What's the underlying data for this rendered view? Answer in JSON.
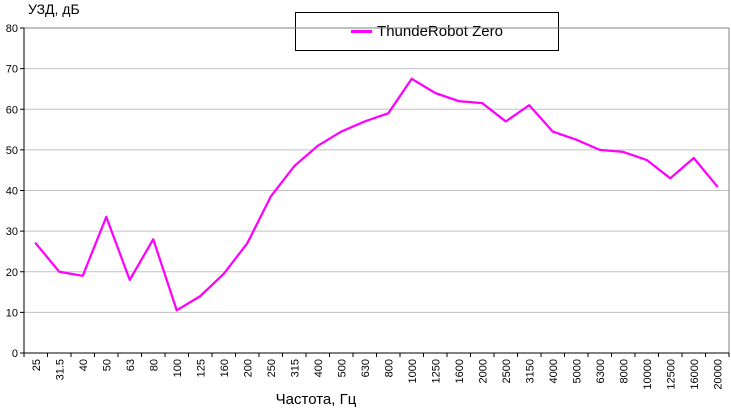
{
  "chart": {
    "y_axis_title": "УЗД, дБ",
    "x_axis_title": "Частота, Гц",
    "legend_label": "ThundeRobot Zero"
  },
  "chart_data": {
    "type": "line",
    "title": "",
    "xlabel": "Частота, Гц",
    "ylabel": "УЗД, дБ",
    "categories": [
      "25",
      "31.5",
      "40",
      "50",
      "63",
      "80",
      "100",
      "125",
      "160",
      "200",
      "250",
      "315",
      "400",
      "500",
      "630",
      "800",
      "1000",
      "1250",
      "1600",
      "2000",
      "2500",
      "3150",
      "4000",
      "5000",
      "6300",
      "8000",
      "10000",
      "12500",
      "16000",
      "20000"
    ],
    "series": [
      {
        "name": "ThundeRobot Zero",
        "color": "#FF00FF",
        "values": [
          27,
          20,
          19,
          33.5,
          18,
          28,
          10.5,
          14,
          19.5,
          27,
          38.5,
          46,
          51,
          54.5,
          57,
          59,
          67.5,
          64,
          62,
          61.5,
          57,
          61,
          54.5,
          52.5,
          50,
          49.5,
          47.5,
          43,
          48,
          41
        ]
      }
    ],
    "ylim": [
      0,
      80
    ],
    "yticks": [
      0,
      10,
      20,
      30,
      40,
      50,
      60,
      70,
      80
    ],
    "grid": "horizontal",
    "legend_position": "top-center",
    "colors": {
      "line": "#FF00FF",
      "grid": "#C0C0C0",
      "plot_border": "#808080",
      "axis": "#000000",
      "background": "#FFFFFF",
      "text": "#000000"
    }
  }
}
